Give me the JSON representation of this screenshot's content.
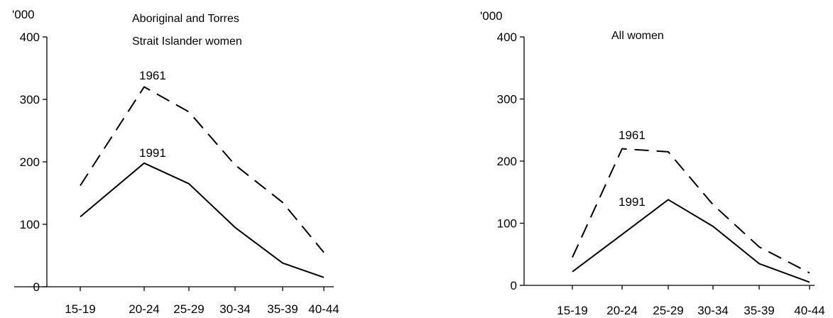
{
  "chart_data": [
    {
      "type": "line",
      "title": "Aboriginal and Torres Strait Islander women",
      "title_lines": [
        "Aboriginal and Torres",
        "Strait Islander women"
      ],
      "unit_label": "'000",
      "categories": [
        "15-19",
        "20-24",
        "25-29",
        "30-34",
        "35-39",
        "40-44"
      ],
      "yticks": [
        0,
        100,
        200,
        300,
        400
      ],
      "ylim": [
        0,
        400
      ],
      "grid": false,
      "series": [
        {
          "name": "1961",
          "style": "dashed",
          "values": [
            162,
            320,
            280,
            195,
            135,
            55
          ]
        },
        {
          "name": "1991",
          "style": "solid",
          "values": [
            112,
            198,
            165,
            95,
            38,
            15
          ]
        }
      ]
    },
    {
      "type": "line",
      "title": "All women",
      "title_lines": [
        "All women"
      ],
      "unit_label": "'000",
      "categories": [
        "15-19",
        "20-24",
        "25-29",
        "30-34",
        "35-39",
        "40-44"
      ],
      "yticks": [
        0,
        100,
        200,
        300,
        400
      ],
      "ylim": [
        0,
        400
      ],
      "grid": false,
      "series": [
        {
          "name": "1961",
          "style": "dashed",
          "values": [
            45,
            220,
            215,
            130,
            62,
            20
          ]
        },
        {
          "name": "1991",
          "style": "solid",
          "values": [
            22,
            82,
            138,
            95,
            35,
            5
          ]
        }
      ]
    }
  ]
}
